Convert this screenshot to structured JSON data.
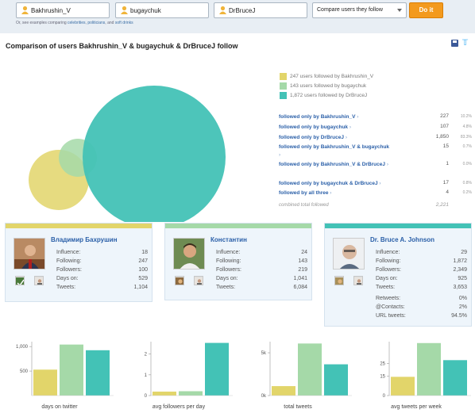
{
  "search": {
    "users": [
      "Bakhrushin_V",
      "bugaychuk",
      "DrBruceJ"
    ],
    "mode": "Compare users they follow",
    "button": "Do it",
    "hint_prefix": "Or, see examples comparing",
    "hint_links": [
      "celebrities",
      "politicians",
      "soft drinks"
    ],
    "hint_sep": ",",
    "hint_and": "and"
  },
  "title": "Comparison of users Bakhrushin_V & bugaychuk & DrBruceJ follow",
  "colors": {
    "user1": "#e2d56a",
    "user2": "#a5d9a8",
    "user3": "#43c2b6",
    "text_link": "#2a5fa8"
  },
  "legend": [
    {
      "text": "247 users followed by Bakhrushin_V",
      "color": "#e2d56a"
    },
    {
      "text": "143 users followed by bugaychuk",
      "color": "#a5d9a8"
    },
    {
      "text": "1,872 users followed by DrBruceJ",
      "color": "#43c2b6"
    }
  ],
  "breakdown": [
    {
      "label": "followed only by Bakhrushin_V",
      "value": "227",
      "pct": "10.2%"
    },
    {
      "label": "followed only by bugaychuk",
      "value": "107",
      "pct": "4.8%"
    },
    {
      "label": "followed only by DrBruceJ",
      "value": "1,850",
      "pct": "83.3%"
    },
    {
      "label": "followed only by Bakhrushin_V & bugaychuk",
      "value": "15",
      "pct": "0.7%"
    },
    {
      "label": "followed only by Bakhrushin_V & DrBruceJ",
      "value": "1",
      "pct": "0.0%"
    },
    {
      "label": "followed only by bugaychuk & DrBruceJ",
      "value": "17",
      "pct": "0.8%"
    },
    {
      "label": "followed by all three",
      "value": "4",
      "pct": "0.2%"
    }
  ],
  "combined": {
    "label": "combined total followed",
    "value": "2,221"
  },
  "cards": [
    {
      "name": "Владимир Бахрушин",
      "stats": [
        {
          "label": "Influence:",
          "value": "18"
        },
        {
          "label": "Following:",
          "value": "247"
        },
        {
          "label": "Followers:",
          "value": "100"
        },
        {
          "label": "Days on:",
          "value": "529"
        },
        {
          "label": "Tweets:",
          "value": "1,104"
        }
      ],
      "extra": []
    },
    {
      "name": "Константин",
      "stats": [
        {
          "label": "Influence:",
          "value": "24"
        },
        {
          "label": "Following:",
          "value": "143"
        },
        {
          "label": "Followers:",
          "value": "219"
        },
        {
          "label": "Days on:",
          "value": "1,041"
        },
        {
          "label": "Tweets:",
          "value": "6,084"
        }
      ],
      "extra": []
    },
    {
      "name": "Dr. Bruce A. Johnson",
      "stats": [
        {
          "label": "Influence:",
          "value": "29"
        },
        {
          "label": "Following:",
          "value": "1,872"
        },
        {
          "label": "Followers:",
          "value": "2,349"
        },
        {
          "label": "Days on:",
          "value": "925"
        },
        {
          "label": "Tweets:",
          "value": "3,653"
        }
      ],
      "extra": [
        {
          "label": "Retweets:",
          "value": "0%"
        },
        {
          "label": "@Contacts:",
          "value": "2%"
        },
        {
          "label": "URL tweets:",
          "value": "94.5%"
        }
      ]
    }
  ],
  "chart_data": [
    {
      "type": "bar",
      "caption": "days on twitter",
      "categories": [
        "Bakhrushin_V",
        "bugaychuk",
        "DrBruceJ"
      ],
      "values": [
        529,
        1041,
        925
      ],
      "ylim": [
        0,
        1100
      ],
      "ticks": [
        {
          "v": 1000,
          "label": "1,000"
        },
        {
          "v": 500,
          "label": "500"
        }
      ]
    },
    {
      "type": "bar",
      "caption": "avg followers per day",
      "categories": [
        "Bakhrushin_V",
        "bugaychuk",
        "DrBruceJ"
      ],
      "values": [
        0.19,
        0.21,
        2.54
      ],
      "ylim": [
        0,
        2.6
      ],
      "ticks": [
        {
          "v": 2,
          "label": "2"
        },
        {
          "v": 1,
          "label": "1"
        },
        {
          "v": 0,
          "label": "0"
        }
      ]
    },
    {
      "type": "bar",
      "caption": "total tweets",
      "categories": [
        "Bakhrushin_V",
        "bugaychuk",
        "DrBruceJ"
      ],
      "values": [
        1104,
        6084,
        3653
      ],
      "ylim": [
        0,
        6300
      ],
      "ticks": [
        {
          "v": 5000,
          "label": "5k"
        },
        {
          "v": 0,
          "label": "0k"
        }
      ]
    },
    {
      "type": "bar",
      "caption": "avg tweets per week",
      "categories": [
        "Bakhrushin_V",
        "bugaychuk",
        "DrBruceJ"
      ],
      "values": [
        14.6,
        40.9,
        27.6
      ],
      "ylim": [
        0,
        42
      ],
      "ticks": [
        {
          "v": 25,
          "label": "25"
        },
        {
          "v": 15,
          "label": "15"
        },
        {
          "v": 0,
          "label": "0"
        }
      ]
    }
  ]
}
